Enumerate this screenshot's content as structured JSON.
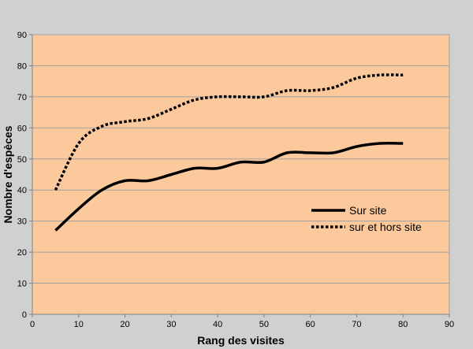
{
  "chart_data": {
    "type": "line",
    "title": "",
    "xlabel": "Rang des visites",
    "ylabel": "Nombre d'espèces",
    "xlim": [
      0,
      90
    ],
    "ylim": [
      0,
      90
    ],
    "xticks": [
      0,
      10,
      20,
      30,
      40,
      50,
      60,
      70,
      80,
      90
    ],
    "yticks": [
      0,
      10,
      20,
      30,
      40,
      50,
      60,
      70,
      80,
      90
    ],
    "grid": "horizontal",
    "legend_position": "right",
    "plot_background": "#fcc99c",
    "outer_background": "#d0d0d0",
    "gridline_color": "#a0a0a0",
    "x": [
      5,
      10,
      15,
      20,
      25,
      30,
      35,
      40,
      45,
      50,
      55,
      60,
      65,
      70,
      75,
      80
    ],
    "series": [
      {
        "name": "Sur site",
        "style": "solid",
        "color": "#000000",
        "values": [
          27,
          34,
          40,
          43,
          43,
          45,
          47,
          47,
          49,
          49,
          52,
          52,
          52,
          54,
          55,
          55
        ]
      },
      {
        "name": "sur et hors site",
        "style": "dotted",
        "color": "#000000",
        "values": [
          40,
          55,
          60.5,
          62,
          63,
          66,
          69,
          70,
          70,
          70,
          72,
          72,
          73,
          76,
          77,
          77
        ]
      }
    ]
  }
}
